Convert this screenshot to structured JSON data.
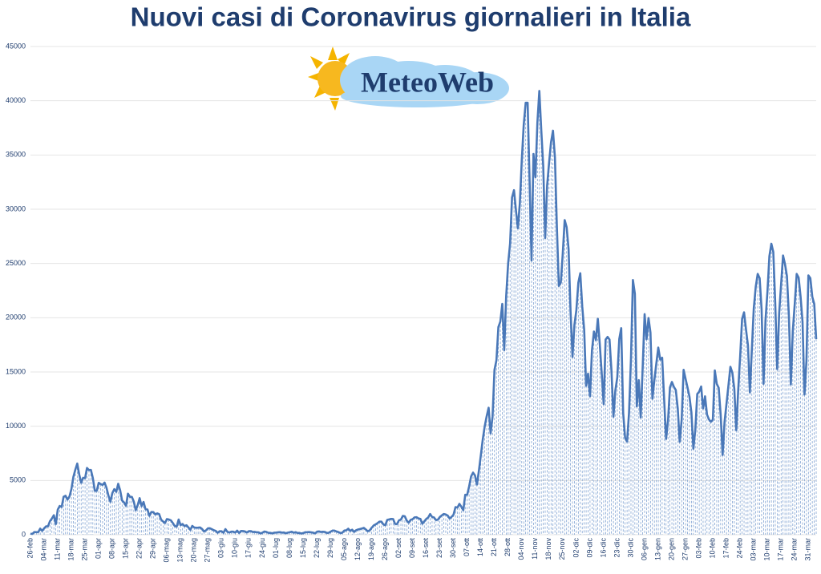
{
  "chart_data": {
    "type": "line",
    "title": "Nuovi casi di Coronavirus giornalieri in Italia",
    "logo": "MeteoWeb",
    "categories": [
      "26-feb",
      null,
      null,
      null,
      null,
      null,
      null,
      "04-mar",
      null,
      null,
      null,
      null,
      null,
      null,
      "11-mar",
      null,
      null,
      null,
      null,
      null,
      null,
      "18-mar",
      null,
      null,
      null,
      null,
      null,
      null,
      "25-mar",
      null,
      null,
      null,
      null,
      null,
      null,
      "01-apr",
      null,
      null,
      null,
      null,
      null,
      null,
      "08-apr",
      null,
      null,
      null,
      null,
      null,
      null,
      "15-apr",
      null,
      null,
      null,
      null,
      null,
      null,
      "22-apr",
      null,
      null,
      null,
      null,
      null,
      null,
      "29-apr",
      null,
      null,
      null,
      null,
      null,
      null,
      "06-mag",
      null,
      null,
      null,
      null,
      null,
      null,
      "13-mag",
      null,
      null,
      null,
      null,
      null,
      null,
      "20-mag",
      null,
      null,
      null,
      null,
      null,
      null,
      "27-mag",
      null,
      null,
      null,
      null,
      null,
      null,
      "03-giu",
      null,
      null,
      null,
      null,
      null,
      null,
      "10-giu",
      null,
      null,
      null,
      null,
      null,
      null,
      "17-giu",
      null,
      null,
      null,
      null,
      null,
      null,
      "24-giu",
      null,
      null,
      null,
      null,
      null,
      null,
      "01-lug",
      null,
      null,
      null,
      null,
      null,
      null,
      "08-lug",
      null,
      null,
      null,
      null,
      null,
      null,
      "15-lug",
      null,
      null,
      null,
      null,
      null,
      null,
      "22-lug",
      null,
      null,
      null,
      null,
      null,
      null,
      "29-lug",
      null,
      null,
      null,
      null,
      null,
      null,
      "05-ago",
      null,
      null,
      null,
      null,
      null,
      null,
      "12-ago",
      null,
      null,
      null,
      null,
      null,
      null,
      "19-ago",
      null,
      null,
      null,
      null,
      null,
      null,
      "26-ago",
      null,
      null,
      null,
      null,
      null,
      null,
      "02-set",
      null,
      null,
      null,
      null,
      null,
      null,
      "09-set",
      null,
      null,
      null,
      null,
      null,
      null,
      "16-set",
      null,
      null,
      null,
      null,
      null,
      null,
      "23-set",
      null,
      null,
      null,
      null,
      null,
      null,
      "30-set",
      null,
      null,
      null,
      null,
      null,
      null,
      "07-ott",
      null,
      null,
      null,
      null,
      null,
      null,
      "14-ott",
      null,
      null,
      null,
      null,
      null,
      null,
      "21-ott",
      null,
      null,
      null,
      null,
      null,
      null,
      "28-ott",
      null,
      null,
      null,
      null,
      null,
      null,
      "04-nov",
      null,
      null,
      null,
      null,
      null,
      null,
      "11-nov",
      null,
      null,
      null,
      null,
      null,
      null,
      "18-nov",
      null,
      null,
      null,
      null,
      null,
      null,
      "25-nov",
      null,
      null,
      null,
      null,
      null,
      null,
      "02-dic",
      null,
      null,
      null,
      null,
      null,
      null,
      "09-dic",
      null,
      null,
      null,
      null,
      null,
      null,
      "16-dic",
      null,
      null,
      null,
      null,
      null,
      null,
      "23-dic",
      null,
      null,
      null,
      null,
      null,
      null,
      "30-dic",
      null,
      null,
      null,
      null,
      null,
      null,
      "06-gen",
      null,
      null,
      null,
      null,
      null,
      null,
      "13-gen",
      null,
      null,
      null,
      null,
      null,
      null,
      "20-gen",
      null,
      null,
      null,
      null,
      null,
      null,
      "27-gen",
      null,
      null,
      null,
      null,
      null,
      null,
      "03-feb",
      null,
      null,
      null,
      null,
      null,
      null,
      "10-feb",
      null,
      null,
      null,
      null,
      null,
      null,
      "17-feb",
      null,
      null,
      null,
      null,
      null,
      null,
      "24-feb",
      null,
      null,
      null,
      null,
      null,
      null,
      "03-mar",
      null,
      null,
      null,
      null,
      null,
      null,
      "10-mar",
      null,
      null,
      null,
      null,
      null,
      null,
      "17-mar",
      null,
      null,
      null,
      null,
      null,
      null,
      "24-mar",
      null,
      null,
      null,
      null,
      null,
      null,
      "31-mar",
      null,
      null,
      null,
      null
    ],
    "values": [
      93,
      78,
      250,
      238,
      240,
      561,
      347,
      587,
      769,
      778,
      1247,
      1492,
      1797,
      977,
      2313,
      2651,
      2547,
      3497,
      3590,
      3233,
      3526,
      4207,
      5322,
      5986,
      6557,
      5560,
      4789,
      5249,
      5210,
      6153,
      5959,
      5974,
      5217,
      4050,
      4053,
      4782,
      4668,
      4585,
      4805,
      4316,
      3599,
      3039,
      3836,
      4204,
      3951,
      4694,
      4092,
      3153,
      2972,
      2667,
      3786,
      3493,
      3491,
      3047,
      2256,
      2729,
      3370,
      2646,
      3021,
      2357,
      2324,
      1739,
      2091,
      2086,
      1872,
      1965,
      1900,
      1389,
      1221,
      1075,
      1444,
      1401,
      1327,
      1083,
      802,
      744,
      1402,
      888,
      992,
      789,
      875,
      675,
      451,
      813,
      665,
      642,
      652,
      669,
      531,
      300,
      397,
      584,
      593,
      516,
      416,
      355,
      178,
      318,
      321,
      177,
      518,
      270,
      197,
      280,
      283,
      202,
      379,
      163,
      346,
      338,
      301,
      210,
      329,
      333,
      251,
      262,
      224,
      218,
      122,
      190,
      296,
      259,
      175,
      174,
      126,
      187,
      201,
      223,
      235,
      192,
      208,
      138,
      193,
      229,
      276,
      188,
      234,
      159,
      169,
      114,
      162,
      230,
      233,
      249,
      219,
      190,
      129,
      282,
      306,
      252,
      275,
      255,
      170,
      181,
      289,
      386,
      379,
      295,
      239,
      159,
      190,
      384,
      402,
      552,
      347,
      463,
      259,
      412,
      481,
      523,
      574,
      629,
      479,
      320,
      403,
      642,
      845,
      947,
      1071,
      1210,
      1209,
      953,
      878,
      1367,
      1409,
      1460,
      1444,
      996,
      978,
      1326,
      1397,
      1733,
      1695,
      1297,
      1108,
      1370,
      1434,
      1597,
      1616,
      1501,
      1458,
      1008,
      1229,
      1452,
      1585,
      1907,
      1638,
      1587,
      1350,
      1392,
      1640,
      1786,
      1912,
      1869,
      1766,
      1494,
      1648,
      1851,
      2548,
      2499,
      2844,
      2578,
      2257,
      3678,
      3677,
      4458,
      5372,
      5724,
      5456,
      4619,
      5901,
      7332,
      8804,
      10010,
      10925,
      11705,
      9338,
      10874,
      15199,
      16079,
      19143,
      19644,
      21273,
      17012,
      21994,
      24991,
      26831,
      31084,
      31758,
      29907,
      28244,
      30550,
      34505,
      37809,
      39811,
      39811,
      32616,
      25271,
      35098,
      32961,
      37978,
      40902,
      37255,
      33979,
      27354,
      32191,
      34283,
      36176,
      37242,
      34767,
      28337,
      22930,
      23232,
      25853,
      29003,
      28352,
      26323,
      20648,
      16377,
      19350,
      20709,
      23225,
      24099,
      21052,
      18887,
      13720,
      14842,
      12756,
      16999,
      18727,
      17938,
      19903,
      17572,
      14844,
      12030,
      17992,
      18236,
      17992,
      15104,
      10872,
      13318,
      14522,
      18040,
      19037,
      11210,
      8913,
      8585,
      11212,
      16202,
      23477,
      22211,
      11831,
      14245,
      10800,
      15378,
      20331,
      18020,
      19978,
      18627,
      12532,
      14242,
      15774,
      17246,
      16146,
      16310,
      12545,
      8824,
      10497,
      13571,
      14078,
      13633,
      13331,
      11629,
      8562,
      10593,
      15204,
      14372,
      13574,
      12715,
      11252,
      7925,
      9660,
      12969,
      13189,
      13659,
      11641,
      12756,
      11069,
      10630,
      10404,
      10591,
      15146,
      13908,
      13532,
      11068,
      7351,
      10386,
      12074,
      13762,
      15479,
      14931,
      13452,
      9630,
      13314,
      16424,
      19886,
      20499,
      18916,
      17455,
      13114,
      17083,
      20884,
      22865,
      24036,
      23641,
      20765,
      13902,
      19749,
      22409,
      25673,
      26824,
      26062,
      21315,
      15267,
      20396,
      23059,
      25735,
      24935,
      23832,
      20159,
      13846,
      18765,
      21267,
      24037,
      23696,
      21932,
      19611,
      12916,
      16017,
      23904,
      23649,
      21932,
      21261,
      18025
    ],
    "color": "#4a78b8",
    "ylim": [
      0,
      45000
    ],
    "yticks": [
      0,
      5000,
      10000,
      15000,
      20000,
      25000,
      30000,
      35000,
      40000,
      45000
    ],
    "grid": true
  }
}
